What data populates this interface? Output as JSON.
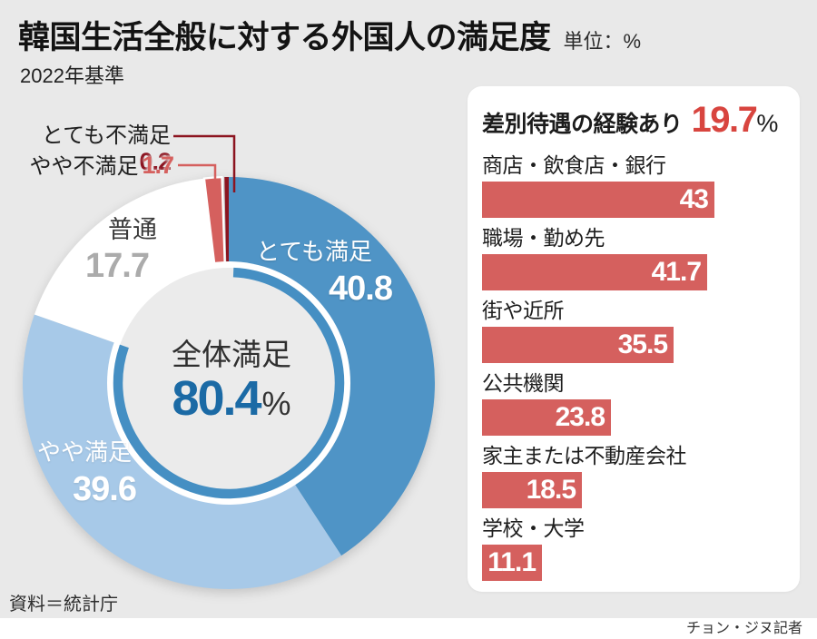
{
  "header": {
    "title": "韓国生活全般に対する外国人の満足度",
    "unit": "単位：%",
    "basis": "2022年基準"
  },
  "footer": {
    "source": "資料＝統計庁",
    "credit": "チョン・ジヌ記者"
  },
  "colors": {
    "background": "#e9e9e9",
    "panel": "#ffffff",
    "blue_dark": "#4f94c6",
    "blue_light": "#a7c9e8",
    "inner_arc_blue": "#458fc3",
    "red": "#d5605e",
    "dark_red": "#8c1420",
    "red_accent_text": "#d8453f",
    "blue_value_text": "#1b6aa5",
    "gray_value_text": "#ababab"
  },
  "chart_data": [
    {
      "type": "pie",
      "subtype": "donut",
      "start_angle_deg": 0,
      "direction": "clockwise",
      "center": {
        "label": "全体満足",
        "value": "80.4",
        "unit": "%"
      },
      "slices": [
        {
          "label": "とても満足",
          "value": 40.8,
          "color": "#4f94c6"
        },
        {
          "label": "やや満足",
          "value": 39.6,
          "color": "#a7c9e8"
        },
        {
          "label": "普通",
          "value": 17.7,
          "color": "#ffffff"
        },
        {
          "label": "やや不満足",
          "value": 1.7,
          "color": "#d5605e"
        },
        {
          "label": "とても不満足",
          "value": 0.2,
          "color": "#8c1420"
        }
      ],
      "inner_arc": {
        "percent": 80.4,
        "color": "#458fc3"
      }
    },
    {
      "type": "bar",
      "orientation": "horizontal",
      "title": "差別待遇の経験あり",
      "title_value": "19.7",
      "title_unit": "%",
      "categories": [
        "商店・飲食店・銀行",
        "職場・勤め先",
        "街や近所",
        "公共機関",
        "家主または不動産会社",
        "学校・大学"
      ],
      "values": [
        43,
        41.7,
        35.5,
        23.8,
        18.5,
        11.1
      ],
      "xlim": [
        0,
        43
      ],
      "bar_color": "#d5605e",
      "value_color": "#ffffff"
    }
  ]
}
